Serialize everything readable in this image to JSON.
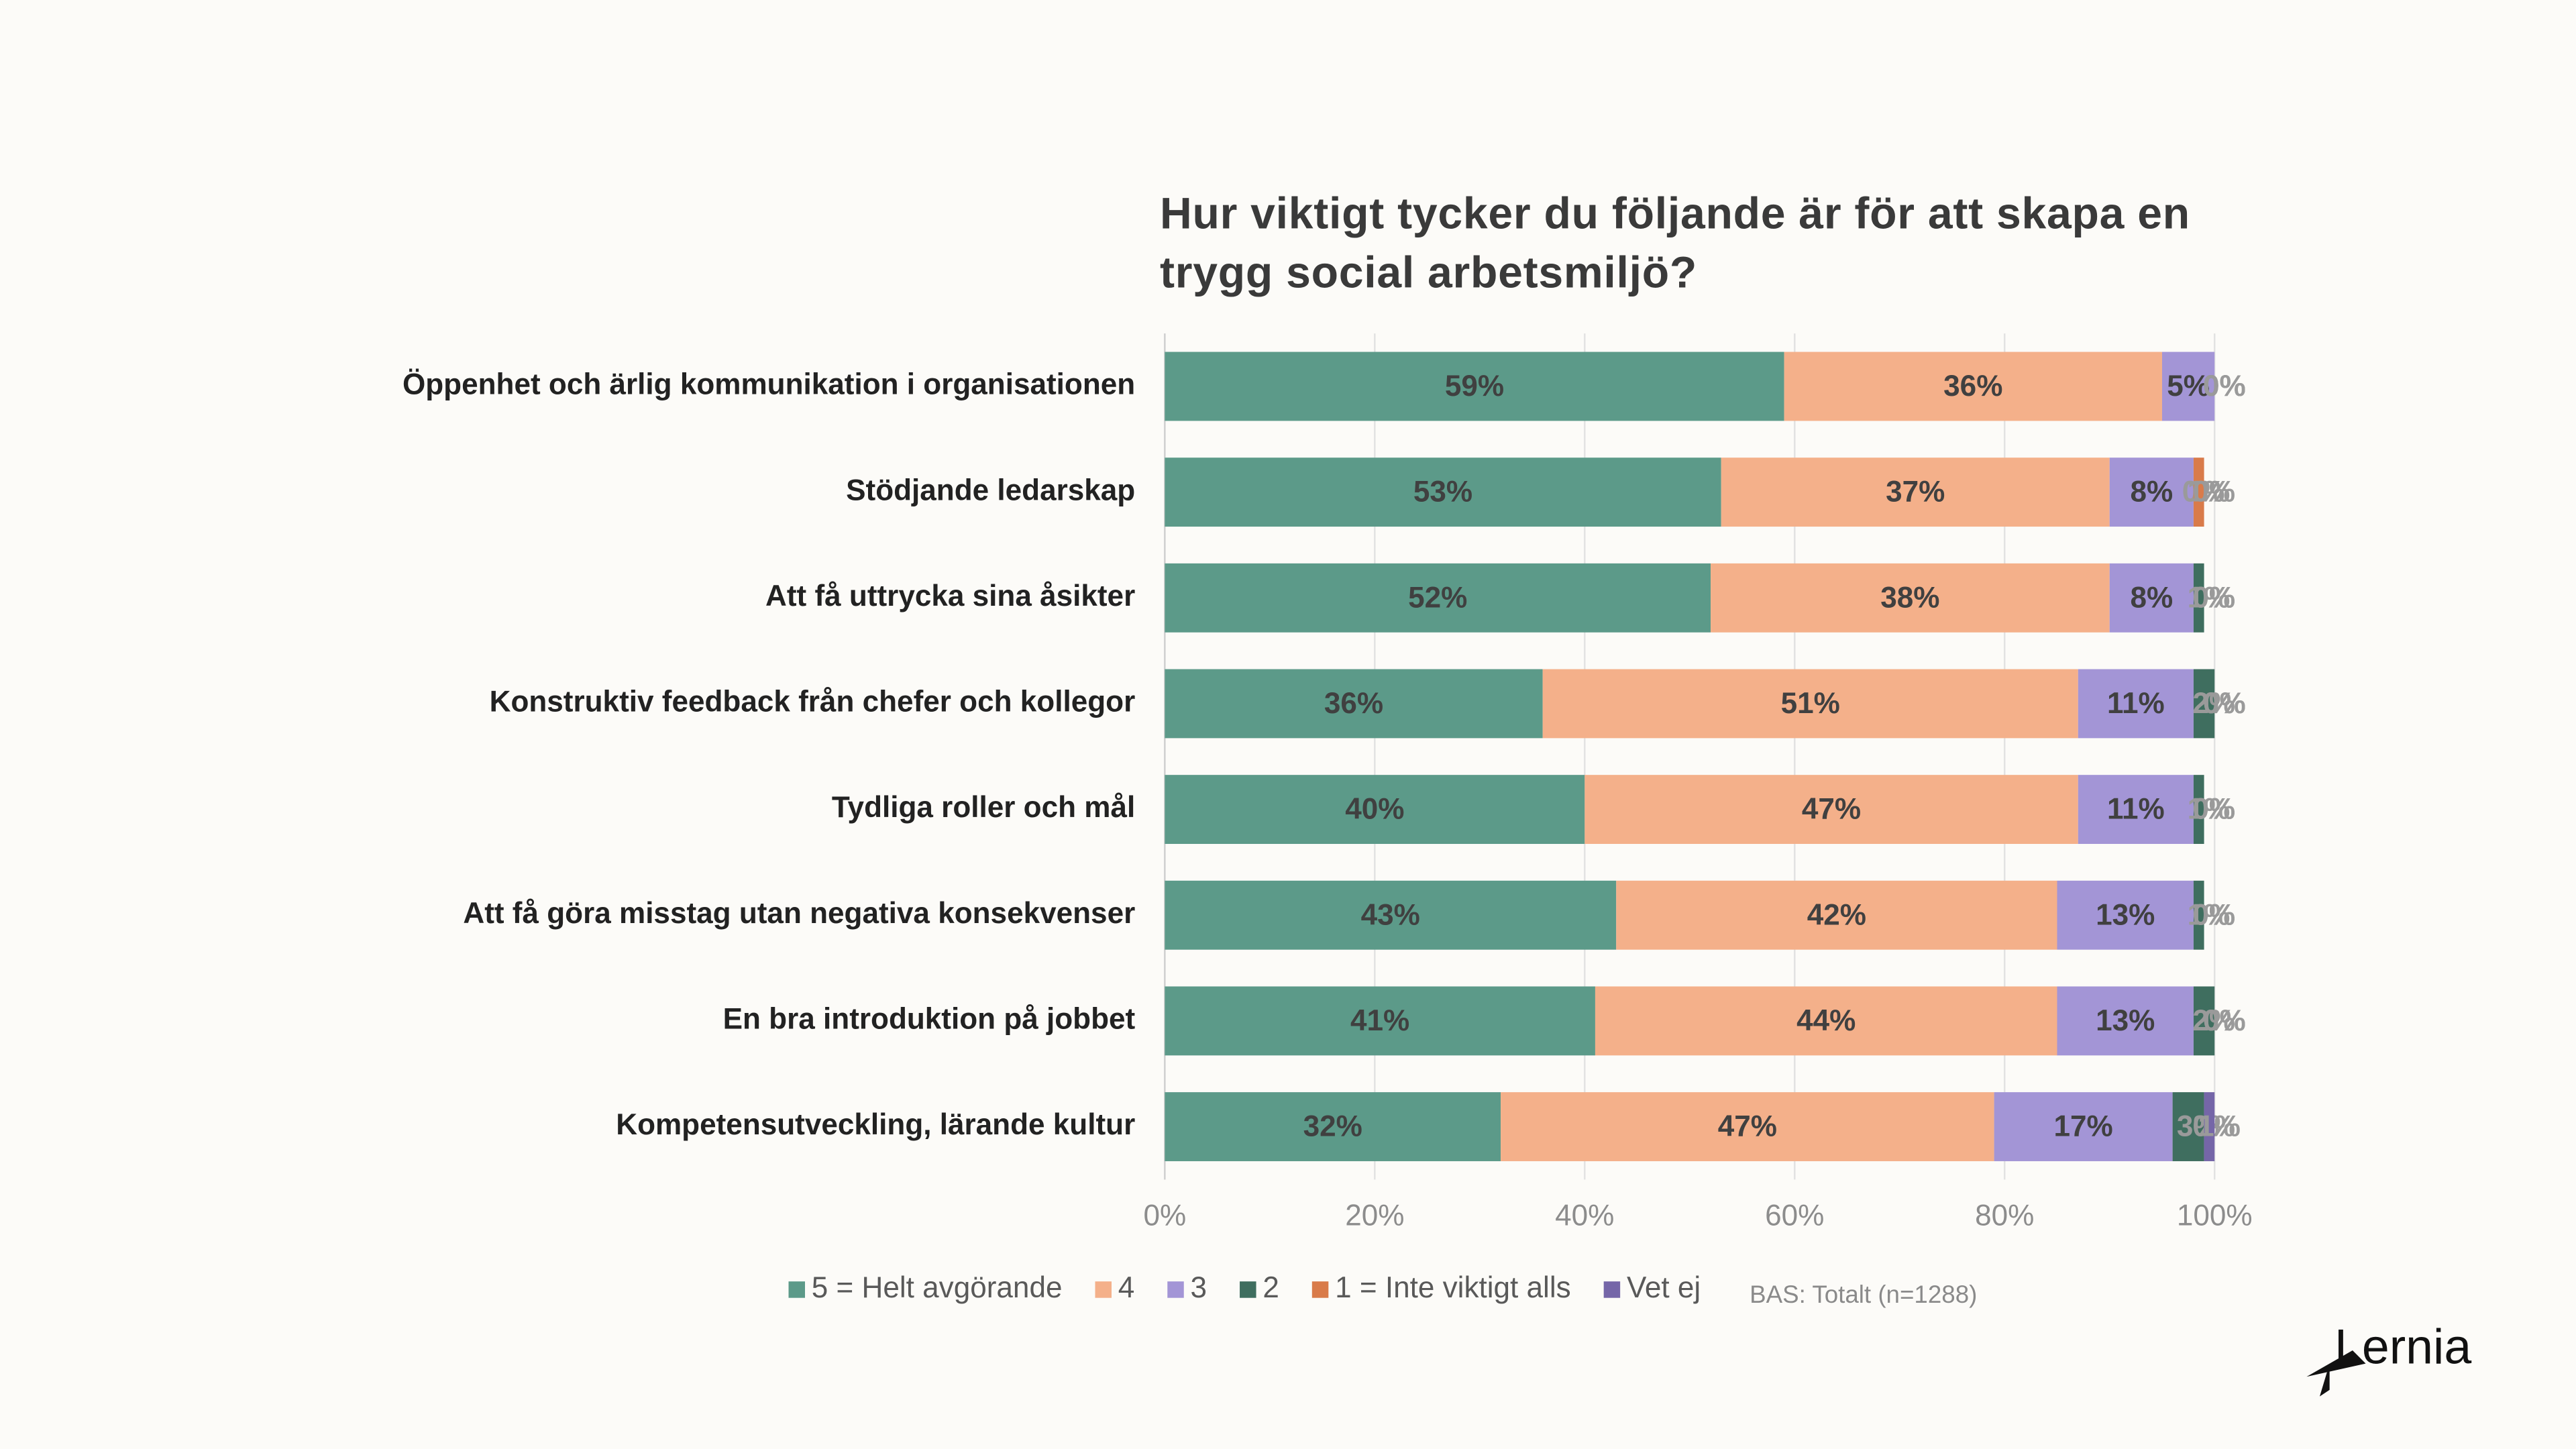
{
  "chart_data": {
    "type": "stacked-bar-horizontal",
    "title": "Hur viktigt tycker du följande är för att skapa en trygg social arbetsmiljö?",
    "categories": [
      "Öppenhet och ärlig kommunikation i organisationen",
      "Stödjande ledarskap",
      "Att få uttrycka sina åsikter",
      "Konstruktiv feedback från chefer och kollegor",
      "Tydliga roller och mål",
      "Att få göra misstag utan negativa konsekvenser",
      "En bra introduktion på jobbet",
      "Kompetensutveckling, lärande kultur"
    ],
    "series": [
      {
        "name": "5 = Helt avgörande",
        "color": "#5c9a89",
        "values": [
          59,
          53,
          52,
          36,
          40,
          43,
          41,
          32
        ],
        "value_labels": [
          "59%",
          "53%",
          "52%",
          "36%",
          "40%",
          "43%",
          "41%",
          "32%"
        ]
      },
      {
        "name": "4",
        "color": "#f4b08a",
        "values": [
          36,
          37,
          38,
          51,
          47,
          42,
          44,
          47
        ],
        "value_labels": [
          "36%",
          "37%",
          "38%",
          "51%",
          "47%",
          "42%",
          "44%",
          "47%"
        ]
      },
      {
        "name": "3",
        "color": "#a395d6",
        "values": [
          5,
          8,
          8,
          11,
          11,
          13,
          13,
          17
        ],
        "value_labels": [
          "5%",
          "8%",
          "8%",
          "11%",
          "11%",
          "13%",
          "13%",
          "17%"
        ]
      },
      {
        "name": "2",
        "color": "#3f6e5f",
        "values": [
          0,
          0,
          1,
          2,
          1,
          1,
          2,
          3
        ],
        "value_labels": [
          "0%",
          "0%",
          "1%",
          "2%",
          "1%",
          "1%",
          "2%",
          "3%"
        ]
      },
      {
        "name": "1 = Inte viktigt alls",
        "color": "#d97b4a",
        "values": [
          0,
          1,
          0,
          0,
          0,
          0,
          0,
          0
        ],
        "value_labels": [
          "0%",
          "1%",
          "0%",
          "0%",
          "0%",
          "0%",
          "0%",
          "0%"
        ]
      },
      {
        "name": "Vet ej",
        "color": "#7566a8",
        "values": [
          0,
          0,
          0,
          0,
          0,
          0,
          0,
          1
        ],
        "value_labels": [
          "0%",
          "0%",
          "0%",
          "0%",
          "0%",
          "0%",
          "0%",
          "1%"
        ]
      }
    ],
    "xlim": [
      0,
      100
    ],
    "xticks": [
      {
        "value": 0,
        "label": "0%"
      },
      {
        "value": 20,
        "label": "20%"
      },
      {
        "value": 40,
        "label": "40%"
      },
      {
        "value": 60,
        "label": "60%"
      },
      {
        "value": 80,
        "label": "80%"
      },
      {
        "value": 100,
        "label": "100%"
      }
    ],
    "grid": true,
    "legend": "bottom",
    "note": "BAS: Totalt (n=1288)"
  },
  "logo": "Lernia"
}
